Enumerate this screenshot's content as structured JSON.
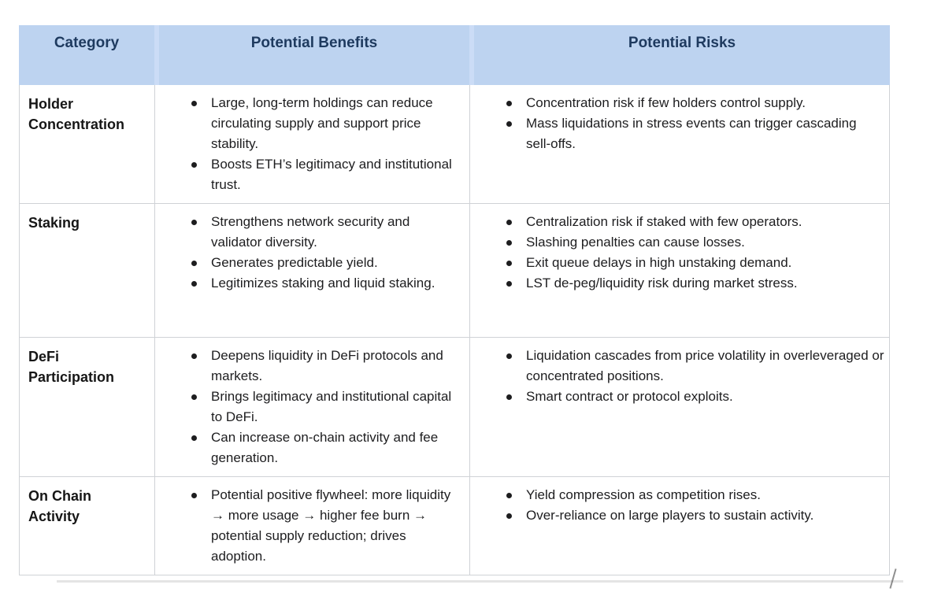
{
  "table": {
    "header_bg": "#bdd3f0",
    "header_text_color": "#1e3a5f",
    "border_color": "#cfd2d6",
    "headers": [
      "Category",
      "Potential Benefits",
      "Potential Risks"
    ],
    "rows": [
      {
        "category": "Holder Concentration",
        "benefits": [
          "Large, long-term holdings can reduce circulating supply and support price stability.",
          "Boosts ETH’s legitimacy and institutional trust."
        ],
        "risks": [
          "Concentration risk if few holders control supply.",
          "Mass liquidations in stress events can trigger cascading sell-offs."
        ]
      },
      {
        "category": "Staking",
        "benefits": [
          "Strengthens network security and validator diversity.",
          "Generates predictable yield.",
          "Legitimizes staking and liquid staking."
        ],
        "risks": [
          "Centralization risk if staked with few operators.",
          "Slashing penalties can cause losses.",
          "Exit queue delays in high unstaking demand.",
          "LST de-peg/liquidity risk during market stress."
        ]
      },
      {
        "category": "DeFi Participation",
        "benefits": [
          "Deepens liquidity in DeFi protocols and markets.",
          "Brings legitimacy and institutional capital to DeFi.",
          "Can increase on-chain activity and fee generation."
        ],
        "risks": [
          "Liquidation cascades from price volatility in overleveraged or concentrated positions.",
          "Smart contract or protocol exploits."
        ]
      },
      {
        "category": "On Chain Activity",
        "benefits": [
          "Potential positive flywheel: more liquidity → more usage → higher fee burn → potential supply reduction; drives adoption."
        ],
        "risks": [
          "Yield compression as competition rises.",
          "Over-reliance on large players to sustain activity."
        ]
      }
    ]
  }
}
